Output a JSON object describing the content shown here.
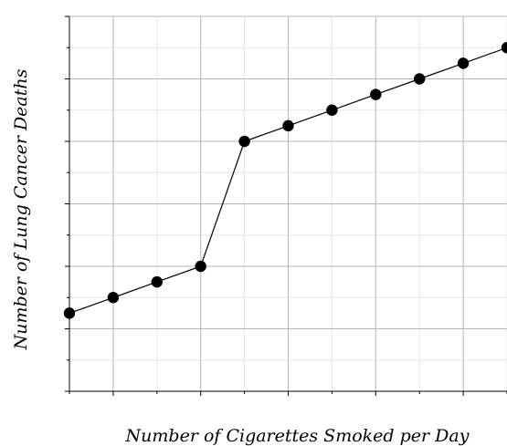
{
  "chart_data": {
    "type": "line",
    "title": "",
    "xlabel": "Number of Cigarettes Smoked per Day",
    "ylabel": "Number of Lung Cancer Deaths",
    "xlim": [
      75,
      125
    ],
    "ylim": [
      80,
      200
    ],
    "x_ticks": [
      "80",
      "90",
      "100",
      "110",
      "120"
    ],
    "y_ticks": [
      "80",
      "100",
      "120",
      "140",
      "160",
      "180",
      "200"
    ],
    "grid": true,
    "series": [
      {
        "x": [
          75,
          80,
          85,
          90,
          95,
          100,
          105,
          110,
          115,
          120,
          125
        ],
        "y": [
          105,
          110,
          115,
          120,
          160,
          165,
          170,
          175,
          180,
          185,
          190
        ]
      }
    ]
  }
}
